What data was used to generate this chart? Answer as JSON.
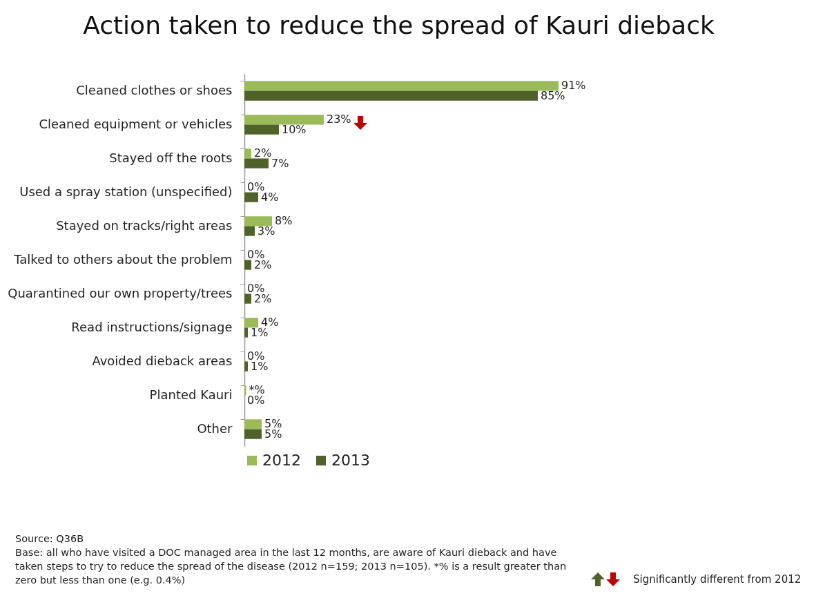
{
  "chart_data": {
    "type": "bar",
    "orientation": "horizontal",
    "title": "Action taken to reduce the spread of Kauri dieback",
    "categories": [
      "Cleaned clothes or shoes",
      "Cleaned equipment or vehicles",
      "Stayed off the roots",
      "Used a spray station (unspecified)",
      "Stayed on tracks/right areas",
      "Talked to others about the problem",
      "Quarantined our own property/trees",
      "Read instructions/signage",
      "Avoided dieback areas",
      "Planted Kauri",
      "Other"
    ],
    "series": [
      {
        "name": "2012",
        "color": "#9bbb59",
        "values": [
          91,
          23,
          2,
          0,
          8,
          0,
          0,
          4,
          0,
          0.5,
          5
        ],
        "value_labels": [
          "91%",
          "23%",
          "2%",
          "0%",
          "8%",
          "0%",
          "0%",
          "4%",
          "0%",
          "*%",
          "5%"
        ]
      },
      {
        "name": "2013",
        "color": "#4f6228",
        "values": [
          85,
          10,
          7,
          4,
          3,
          2,
          2,
          1,
          1,
          0,
          5
        ],
        "value_labels": [
          "85%",
          "10%",
          "7%",
          "4%",
          "3%",
          "2%",
          "2%",
          "1%",
          "1%",
          "0%",
          "5%"
        ]
      }
    ],
    "legend": "bottom",
    "annotations": [
      "Source: Q36B",
      "Base: all who have visited a DOC managed area in the last 12 months, are aware of Kauri dieback and have taken steps to try to reduce the spread of the disease (2012 n=159; 2013 n=105). *% is a result greater than zero but less than one (e.g. 0.4%)",
      "Significantly different from 2012"
    ]
  }
}
